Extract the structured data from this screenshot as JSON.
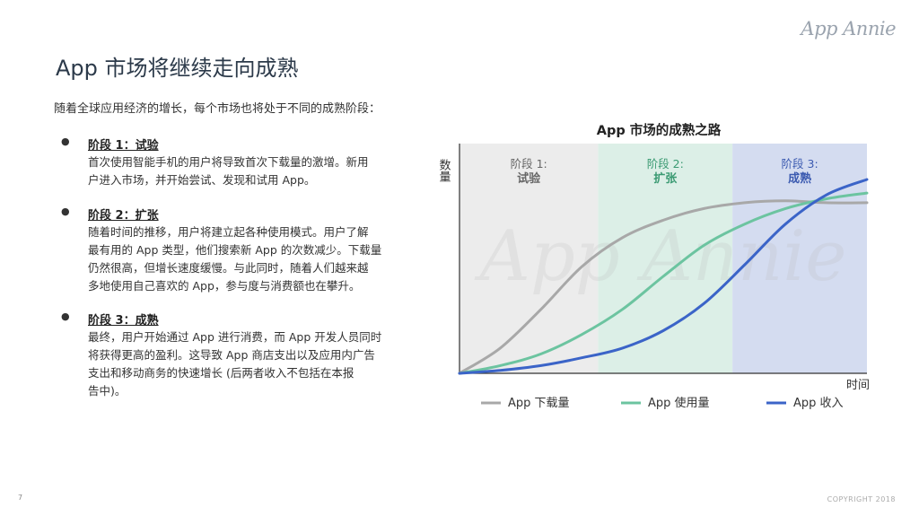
{
  "brand": "App Annie",
  "title": "App 市场将继续走向成熟",
  "intro": "随着全球应用经济的增长，每个市场也将处于不同的成熟阶段：",
  "stages": [
    {
      "bullet": "●",
      "heading": "阶段 1：试验",
      "lines": [
        "首次使用智能手机的用户将导致首次下载量的激增。新用",
        "户进入市场，并开始尝试、发现和试用 App。"
      ]
    },
    {
      "bullet": "●",
      "heading": "阶段 2：扩张",
      "lines": [
        "随着时间的推移，用户将建立起各种使用模式。用户了解",
        "最有用的 App 类型，他们搜索新 App 的次数减少。下载量",
        "仍然很高，但增长速度缓慢。与此同时，随着人们越来越",
        "多地使用自己喜欢的 App，参与度与消费额也在攀升。"
      ]
    },
    {
      "bullet": "●",
      "heading": "阶段 3：成熟",
      "lines": [
        "最终，用户开始通过 App 进行消费，而 App 开发人员同时",
        "将获得更高的盈利。这导致 App 商店支出以及应用内广告",
        "支出和移动商务的快速增长 (后两者收入不包括在本报",
        "告中)。"
      ]
    }
  ],
  "page_number": "7",
  "copyright": "COPYRIGHT 2018",
  "chart_data": {
    "type": "line",
    "title": "App 市场的成熟之路",
    "xlabel": "时间",
    "ylabel": "数量",
    "watermark": "App Annie",
    "x": [
      0,
      10,
      20,
      30,
      40,
      50,
      60,
      70,
      80,
      90,
      100
    ],
    "ylim": [
      0,
      100
    ],
    "phases": [
      {
        "label_top": "阶段 1:",
        "label_bottom": "试验",
        "x_range": [
          0,
          34
        ],
        "color": "#ececec",
        "text_color": "#666666"
      },
      {
        "label_top": "阶段 2:",
        "label_bottom": "扩张",
        "x_range": [
          34,
          67
        ],
        "color": "#dcefe7",
        "text_color": "#3a9a72"
      },
      {
        "label_top": "阶段 3:",
        "label_bottom": "成熟",
        "x_range": [
          67,
          100
        ],
        "color": "#d4dcf0",
        "text_color": "#3b5ab0"
      }
    ],
    "series": [
      {
        "name": "App 下载量",
        "color": "#a8a8a8",
        "values": [
          0,
          13,
          33,
          55,
          70,
          79,
          85,
          88,
          89,
          88,
          88
        ]
      },
      {
        "name": "App 使用量",
        "color": "#6cc4a0",
        "values": [
          0,
          4,
          10,
          20,
          33,
          50,
          66,
          77,
          85,
          90,
          93
        ]
      },
      {
        "name": "App 收入",
        "color": "#3b64c8",
        "values": [
          0,
          1.5,
          4,
          8,
          13,
          22,
          36,
          56,
          77,
          92,
          100
        ]
      }
    ]
  }
}
